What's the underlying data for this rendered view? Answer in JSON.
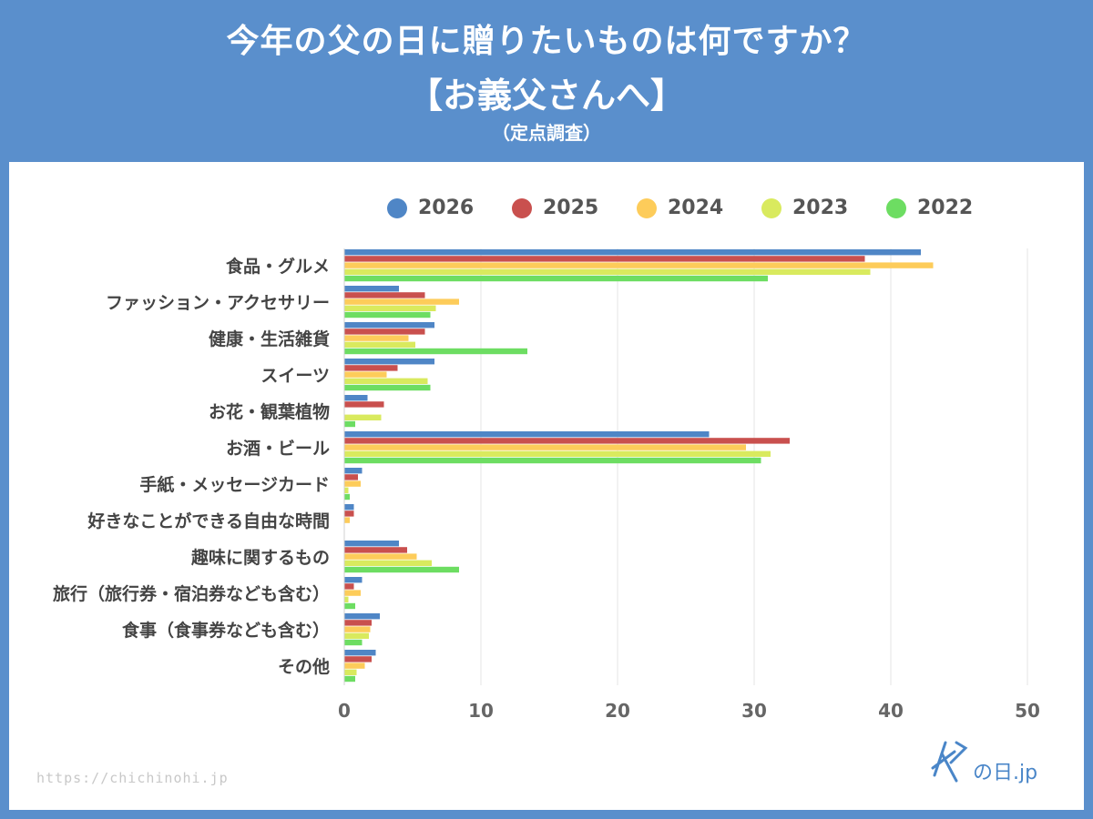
{
  "header": {
    "title_line1": "今年の父の日に贈りたいものは何ですか？",
    "title_line2": "【お義父さんへ】",
    "subtitle": "（定点調査）"
  },
  "footer": {
    "url": "https://chichinohi.jp",
    "logo_text": "父の日.jp"
  },
  "colors": {
    "2026": "#4f86c6",
    "2025": "#c9504e",
    "2024": "#fdcc5a",
    "2023": "#d9ea5e",
    "2022": "#6ddd62"
  },
  "chart_data": {
    "type": "bar",
    "orientation": "horizontal",
    "title": "今年の父の日に贈りたいものは何ですか？【お義父さんへ】（定点調査）",
    "xlabel": "",
    "ylabel": "",
    "xlim": [
      0,
      50
    ],
    "xticks": [
      0,
      10,
      20,
      30,
      40,
      50
    ],
    "grid": true,
    "legend_position": "top",
    "categories": [
      "食品・グルメ",
      "ファッション・アクセサリー",
      "健康・生活雑貨",
      "スイーツ",
      "お花・観葉植物",
      "お酒・ビール",
      "手紙・メッセージカード",
      "好きなことができる自由な時間",
      "趣味に関するもの",
      "旅行（旅行券・宿泊券なども含む）",
      "食事（食事券なども含む）",
      "その他"
    ],
    "series": [
      {
        "name": "2026",
        "values": [
          42.2,
          4.0,
          6.6,
          6.6,
          1.7,
          26.7,
          1.3,
          0.7,
          4.0,
          1.3,
          2.6,
          2.3
        ]
      },
      {
        "name": "2025",
        "values": [
          38.1,
          5.9,
          5.9,
          3.9,
          2.9,
          32.6,
          1.0,
          0.7,
          4.6,
          0.7,
          2.0,
          2.0
        ]
      },
      {
        "name": "2024",
        "values": [
          43.1,
          8.4,
          4.7,
          3.1,
          0,
          29.4,
          1.2,
          0.4,
          5.3,
          1.2,
          1.9,
          1.5
        ]
      },
      {
        "name": "2023",
        "values": [
          38.5,
          6.7,
          5.2,
          6.1,
          2.7,
          31.2,
          0.3,
          0,
          6.4,
          0.3,
          1.8,
          0.9
        ]
      },
      {
        "name": "2022",
        "values": [
          31.0,
          6.3,
          13.4,
          6.3,
          0.8,
          30.5,
          0.4,
          0,
          8.4,
          0.8,
          1.3,
          0.8
        ]
      }
    ]
  }
}
